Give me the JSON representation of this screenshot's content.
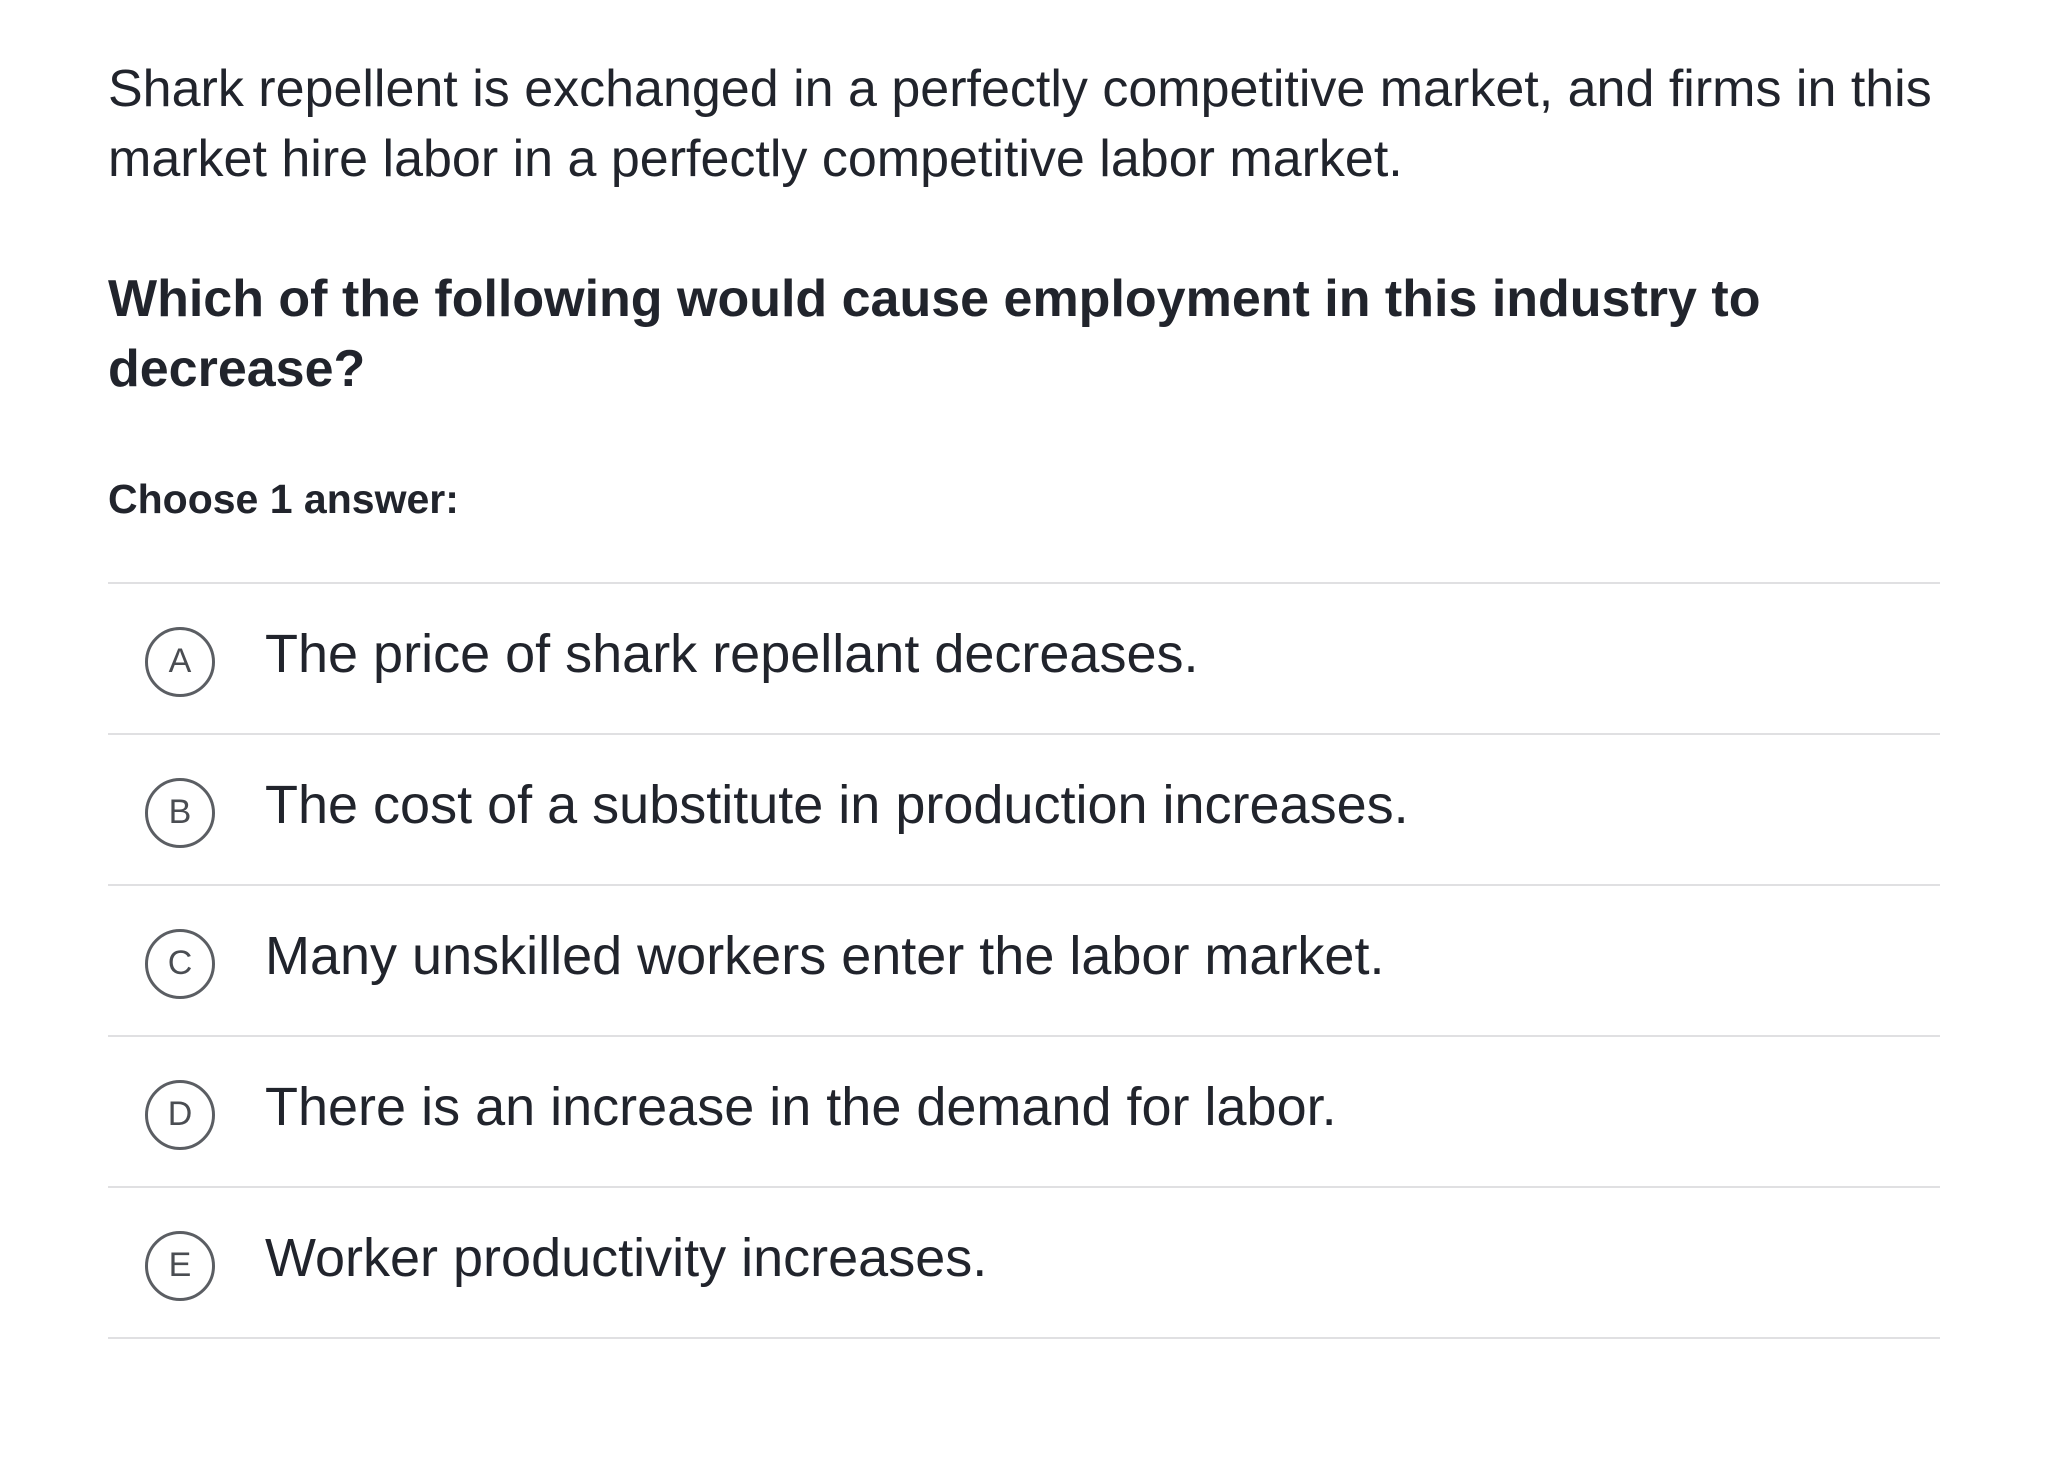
{
  "stem": "Shark repellent is exchanged in a perfectly competitive market, and firms in this market hire labor in a perfectly competitive labor market.",
  "question": "Which of the following would cause employment in this industry to decrease?",
  "prompt": "Choose 1 answer:",
  "choices": [
    {
      "letter": "A",
      "text": "The price of shark repellant decreases."
    },
    {
      "letter": "B",
      "text": "The cost of a substitute in production increases."
    },
    {
      "letter": "C",
      "text": "Many unskilled workers enter the labor market."
    },
    {
      "letter": "D",
      "text": "There is an increase in the demand for labor."
    },
    {
      "letter": "E",
      "text": "Worker productivity increases."
    }
  ]
}
